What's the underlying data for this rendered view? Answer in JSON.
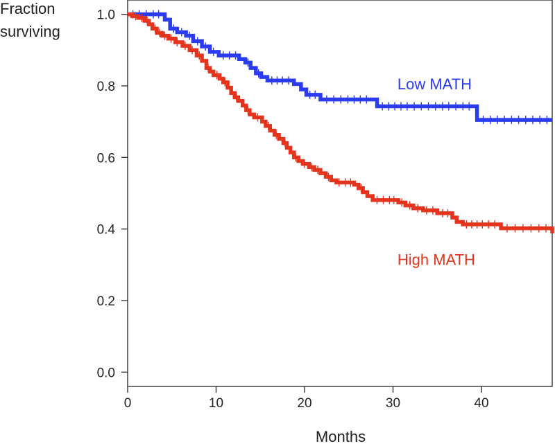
{
  "chart_data": {
    "type": "line",
    "title": "",
    "ylabel_lines": [
      "Fraction",
      "surviving"
    ],
    "xlabel": "Months",
    "xlim": [
      0,
      48
    ],
    "ylim": [
      -0.04,
      1.04
    ],
    "x_ticks": [
      0,
      10,
      20,
      30,
      40
    ],
    "x_tick_labels": [
      "0",
      "10",
      "20",
      "30",
      "40"
    ],
    "y_ticks": [
      0.0,
      0.2,
      0.4,
      0.6,
      0.8,
      1.0
    ],
    "y_tick_labels": [
      "0.0",
      "0.2",
      "0.4",
      "0.6",
      "0.8",
      "1.0"
    ],
    "grid": false,
    "legend": "inline labels",
    "series": [
      {
        "name": "Low MATH",
        "label": "Low MATH",
        "color": "#2b3bf0",
        "label_anchor": [
          30.5,
          0.79
        ],
        "steps": [
          [
            0,
            1.0
          ],
          [
            4.2,
            0.985
          ],
          [
            4.8,
            0.96
          ],
          [
            5.6,
            0.95
          ],
          [
            6.6,
            0.94
          ],
          [
            7.4,
            0.925
          ],
          [
            8.4,
            0.91
          ],
          [
            9.3,
            0.895
          ],
          [
            10.3,
            0.885
          ],
          [
            12.6,
            0.875
          ],
          [
            13.3,
            0.865
          ],
          [
            13.9,
            0.85
          ],
          [
            14.5,
            0.835
          ],
          [
            15.1,
            0.825
          ],
          [
            15.8,
            0.815
          ],
          [
            18.8,
            0.805
          ],
          [
            19.6,
            0.79
          ],
          [
            20.2,
            0.775
          ],
          [
            21.8,
            0.762
          ],
          [
            28.2,
            0.743
          ],
          [
            39.5,
            0.705
          ]
        ],
        "x_end": 48,
        "censors": [
          0.6,
          1.3,
          2.1,
          2.9,
          3.5,
          5.2,
          6.1,
          7.0,
          7.9,
          8.8,
          9.7,
          10.8,
          11.5,
          12.2,
          13.6,
          14.8,
          16.3,
          16.9,
          17.5,
          18.2,
          20.6,
          21.2,
          22.5,
          23.3,
          24.1,
          24.9,
          25.6,
          26.3,
          27.0,
          28.8,
          29.5,
          30.2,
          30.9,
          31.6,
          32.4,
          33.2,
          34.0,
          34.8,
          35.6,
          36.3,
          37.1,
          37.9,
          38.6,
          40.2,
          41.0,
          41.8,
          42.6,
          43.4,
          44.2,
          45.0,
          45.8,
          46.6,
          47.4
        ]
      },
      {
        "name": "High MATH",
        "label": "High MATH",
        "color": "#e5341d",
        "label_anchor": [
          30.5,
          0.3
        ],
        "steps": [
          [
            0,
            1.0
          ],
          [
            0.5,
            0.995
          ],
          [
            1.2,
            0.99
          ],
          [
            1.9,
            0.982
          ],
          [
            2.4,
            0.972
          ],
          [
            2.8,
            0.96
          ],
          [
            3.3,
            0.948
          ],
          [
            3.9,
            0.94
          ],
          [
            4.6,
            0.932
          ],
          [
            5.4,
            0.922
          ],
          [
            6.2,
            0.912
          ],
          [
            7.0,
            0.9
          ],
          [
            7.8,
            0.885
          ],
          [
            8.4,
            0.87
          ],
          [
            8.9,
            0.85
          ],
          [
            9.3,
            0.84
          ],
          [
            9.7,
            0.83
          ],
          [
            10.4,
            0.82
          ],
          [
            10.8,
            0.81
          ],
          [
            11.3,
            0.795
          ],
          [
            11.7,
            0.78
          ],
          [
            12.1,
            0.768
          ],
          [
            12.5,
            0.758
          ],
          [
            13.0,
            0.745
          ],
          [
            13.4,
            0.732
          ],
          [
            13.8,
            0.72
          ],
          [
            14.3,
            0.712
          ],
          [
            15.2,
            0.7
          ],
          [
            15.6,
            0.688
          ],
          [
            16.1,
            0.675
          ],
          [
            16.6,
            0.663
          ],
          [
            17.1,
            0.652
          ],
          [
            17.6,
            0.64
          ],
          [
            18.0,
            0.627
          ],
          [
            18.4,
            0.614
          ],
          [
            18.8,
            0.6
          ],
          [
            19.3,
            0.59
          ],
          [
            19.8,
            0.582
          ],
          [
            20.5,
            0.573
          ],
          [
            21.1,
            0.565
          ],
          [
            21.8,
            0.556
          ],
          [
            22.4,
            0.546
          ],
          [
            23.0,
            0.536
          ],
          [
            23.6,
            0.53
          ],
          [
            25.6,
            0.524
          ],
          [
            26.1,
            0.514
          ],
          [
            26.6,
            0.503
          ],
          [
            27.1,
            0.492
          ],
          [
            27.7,
            0.481
          ],
          [
            30.6,
            0.474
          ],
          [
            31.4,
            0.466
          ],
          [
            32.3,
            0.458
          ],
          [
            33.4,
            0.452
          ],
          [
            35.0,
            0.444
          ],
          [
            36.7,
            0.432
          ],
          [
            37.2,
            0.42
          ],
          [
            37.9,
            0.413
          ],
          [
            42.2,
            0.402
          ]
        ],
        "x_end": 48,
        "drop_at_end": 0.388,
        "censors": [
          0.9,
          1.6,
          2.2,
          3.1,
          3.6,
          4.2,
          4.9,
          5.6,
          6.5,
          7.3,
          8.1,
          9.1,
          10.1,
          11.0,
          12.3,
          13.6,
          14.7,
          15.9,
          16.8,
          17.8,
          19.0,
          20.0,
          20.8,
          21.5,
          22.7,
          23.9,
          24.6,
          25.2,
          26.4,
          28.2,
          28.9,
          29.6,
          30.1,
          31.0,
          31.9,
          32.8,
          33.8,
          34.5,
          35.6,
          36.2,
          38.3,
          38.9,
          39.5,
          40.1,
          40.8,
          41.5,
          42.9,
          43.8,
          44.7,
          45.6,
          46.5,
          47.3
        ]
      }
    ]
  }
}
